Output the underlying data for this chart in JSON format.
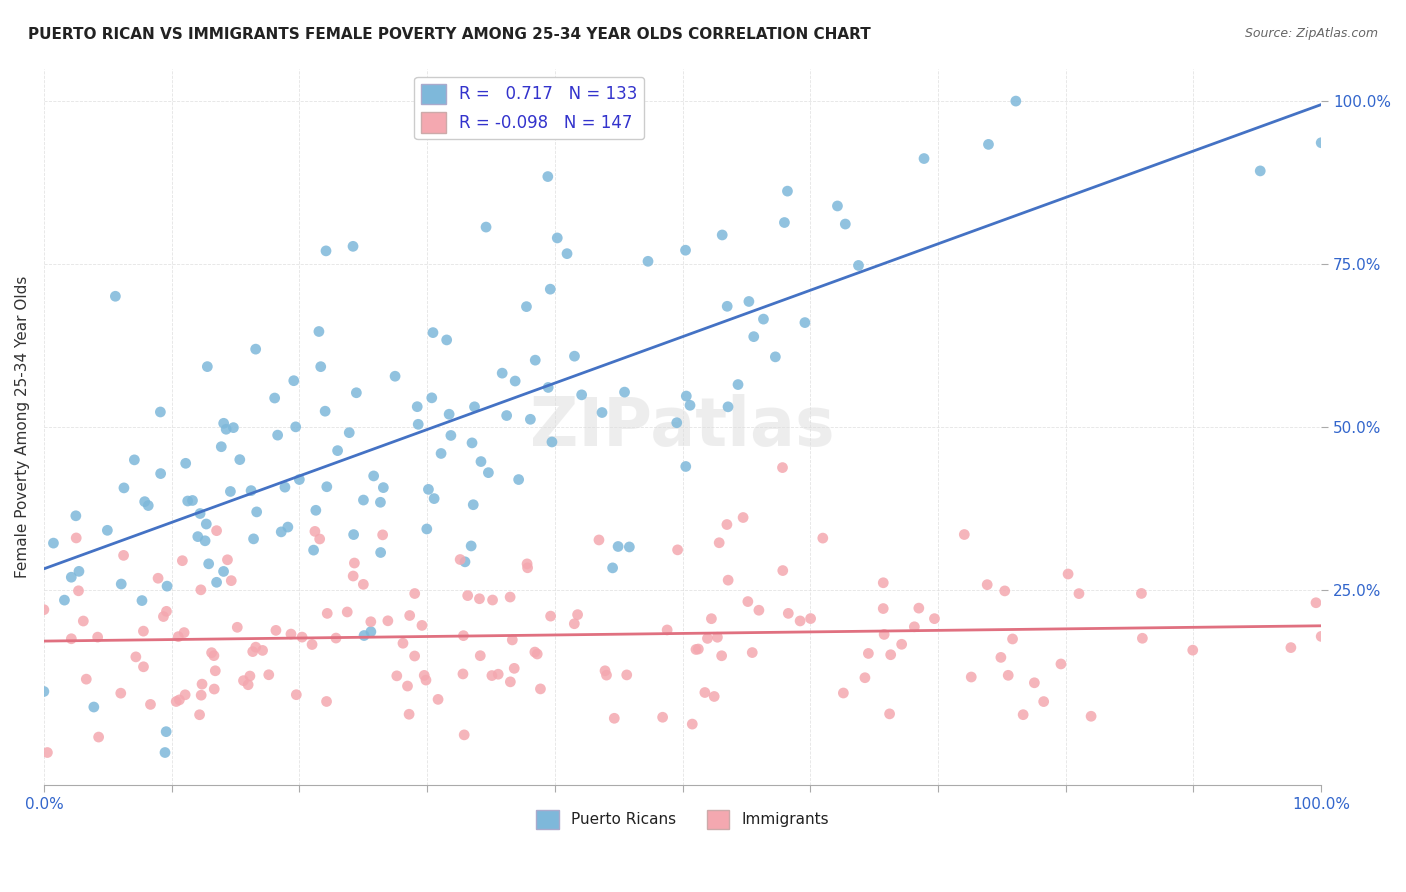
{
  "title": "PUERTO RICAN VS IMMIGRANTS FEMALE POVERTY AMONG 25-34 YEAR OLDS CORRELATION CHART",
  "source": "Source: ZipAtlas.com",
  "ylabel": "Female Poverty Among 25-34 Year Olds",
  "xlabel": "",
  "blue_R": 0.717,
  "blue_N": 133,
  "pink_R": -0.098,
  "pink_N": 147,
  "blue_color": "#7EB8DA",
  "pink_color": "#F4A8B0",
  "blue_line_color": "#4472C4",
  "pink_line_color": "#E07080",
  "background_color": "#FFFFFF",
  "grid_color": "#DDDDDD",
  "xlim": [
    0,
    1
  ],
  "ylim": [
    -0.05,
    1.05
  ],
  "seed": 42
}
